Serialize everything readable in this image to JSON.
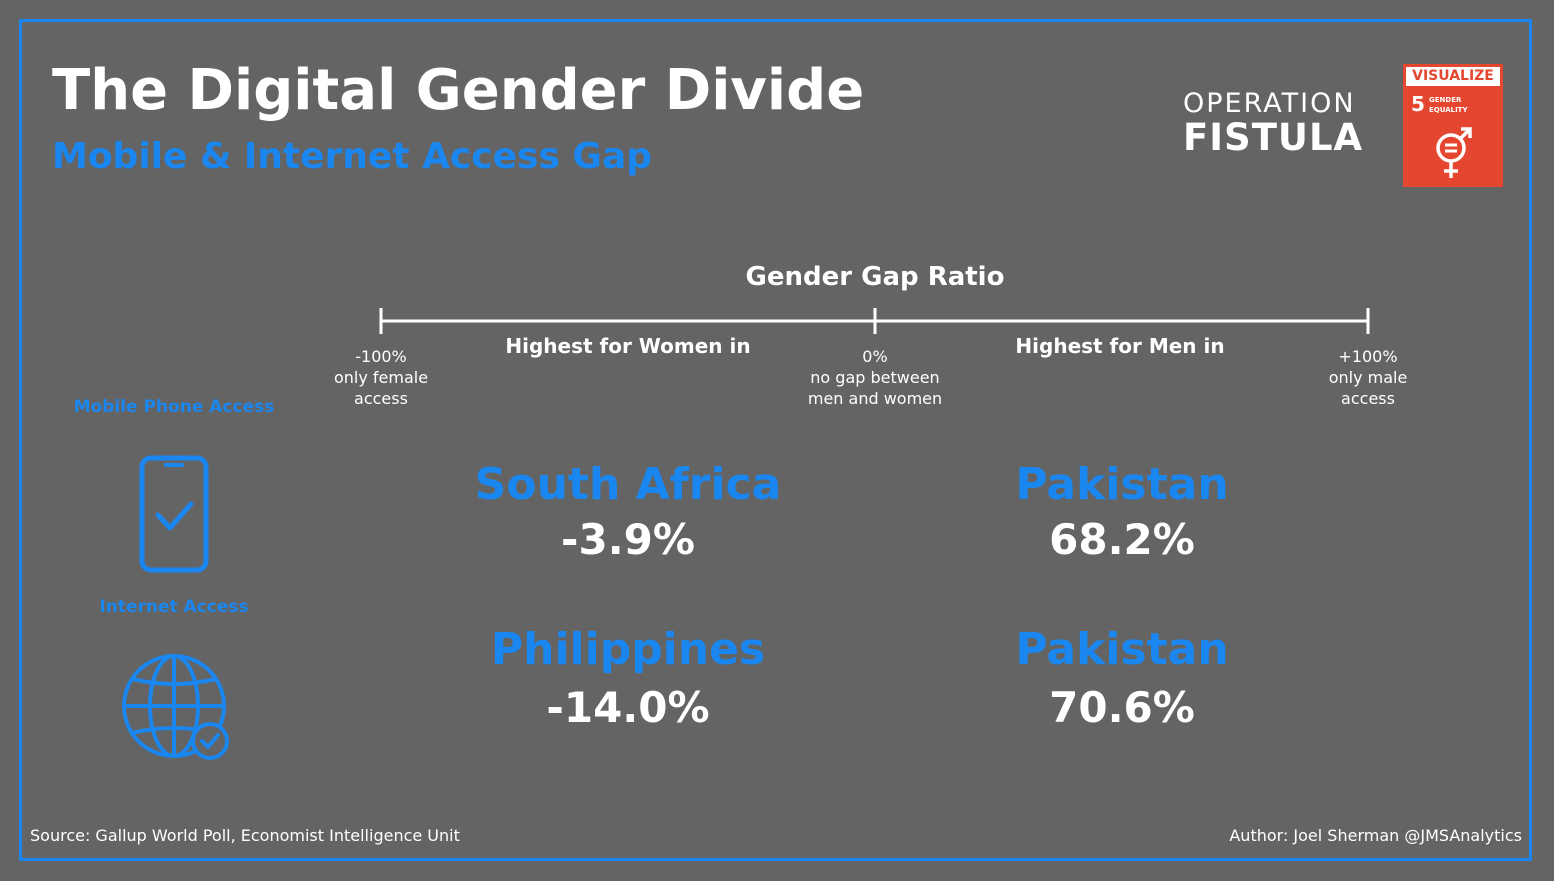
{
  "header": {
    "title": "The Digital Gender Divide",
    "subtitle": "Mobile & Internet Access Gap"
  },
  "brand": {
    "line1": "OPERATION",
    "line2": "FISTULA"
  },
  "sdg_badge": {
    "label": "VISUALIZE",
    "number": "5",
    "text": "GENDER EQUALITY",
    "icon": "gender-equality-icon"
  },
  "scale": {
    "title": "Gender Gap Ratio",
    "left_value": "-100%",
    "left_desc1": "only female",
    "left_desc2": "access",
    "mid_value": "0%",
    "mid_desc1": "no gap between",
    "mid_desc2": "men and women",
    "right_value": "+100%",
    "right_desc1": "only male",
    "right_desc2": "access",
    "women_head": "Highest for Women in",
    "men_head": "Highest for Men in"
  },
  "categories": {
    "mobile": {
      "label": "Mobile Phone Access",
      "icon": "mobile-phone-check-icon"
    },
    "internet": {
      "label": "Internet Access",
      "icon": "globe-check-icon"
    }
  },
  "results": {
    "mobile_women": {
      "country": "South Africa",
      "value": "-3.9%"
    },
    "mobile_men": {
      "country": "Pakistan",
      "value": "68.2%"
    },
    "internet_women": {
      "country": "Philippines",
      "value": "-14.0%"
    },
    "internet_men": {
      "country": "Pakistan",
      "value": "70.6%"
    }
  },
  "footer": {
    "source": "Source: Gallup World Poll, Economist Intelligence Unit",
    "author": "Author: Joel Sherman @JMSAnalytics"
  },
  "colors": {
    "background": "#646464",
    "accent": "#1a86f0",
    "sdg": "#e5462f",
    "text": "#ffffff"
  }
}
